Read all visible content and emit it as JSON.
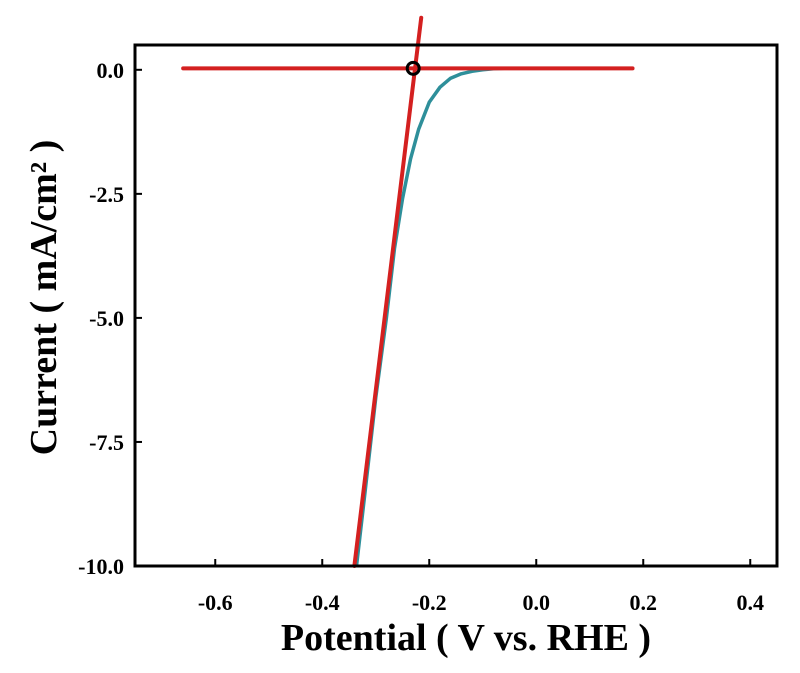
{
  "chart_data": {
    "type": "line",
    "title": "",
    "xlabel": "Potential ( V vs. RHE )",
    "ylabel": "Current ( mA/cm² )",
    "xlim": [
      -0.75,
      0.45
    ],
    "ylim": [
      -10.0,
      0.5
    ],
    "x_ticks": [
      -0.6,
      -0.4,
      -0.2,
      0.0,
      0.2,
      0.4
    ],
    "x_tick_labels": [
      "-0.6",
      "-0.4",
      "-0.2",
      "0.0",
      "0.2",
      "0.4"
    ],
    "y_ticks": [
      0.0,
      -2.5,
      -5.0,
      -7.5,
      -10.0
    ],
    "y_tick_labels": [
      "0.0",
      "-2.5",
      "-5.0",
      "-7.5",
      "-10.0"
    ],
    "grid": false,
    "legend": "none",
    "series": [
      {
        "color": "#2e8f9a",
        "x": [
          -0.336,
          -0.32,
          -0.3,
          -0.28,
          -0.265,
          -0.25,
          -0.235,
          -0.22,
          -0.2,
          -0.18,
          -0.16,
          -0.14,
          -0.12,
          -0.1,
          -0.08,
          -0.06
        ],
        "y": [
          -10.0,
          -8.5,
          -6.6,
          -5.0,
          -3.6,
          -2.6,
          -1.8,
          -1.2,
          -0.65,
          -0.35,
          -0.17,
          -0.08,
          -0.03,
          0.0,
          0.02,
          0.03
        ]
      }
    ],
    "annotations": {
      "baseline_line": {
        "color": "#d42020",
        "x": [
          -0.66,
          0.18
        ],
        "y": [
          0.03,
          0.03
        ]
      },
      "tangent_line": {
        "color": "#d42020",
        "x": [
          -0.34,
          -0.215
        ],
        "y": [
          -10.0,
          1.05
        ]
      },
      "onset_marker": {
        "color": "#000000",
        "x": -0.23,
        "y": 0.03
      }
    }
  }
}
